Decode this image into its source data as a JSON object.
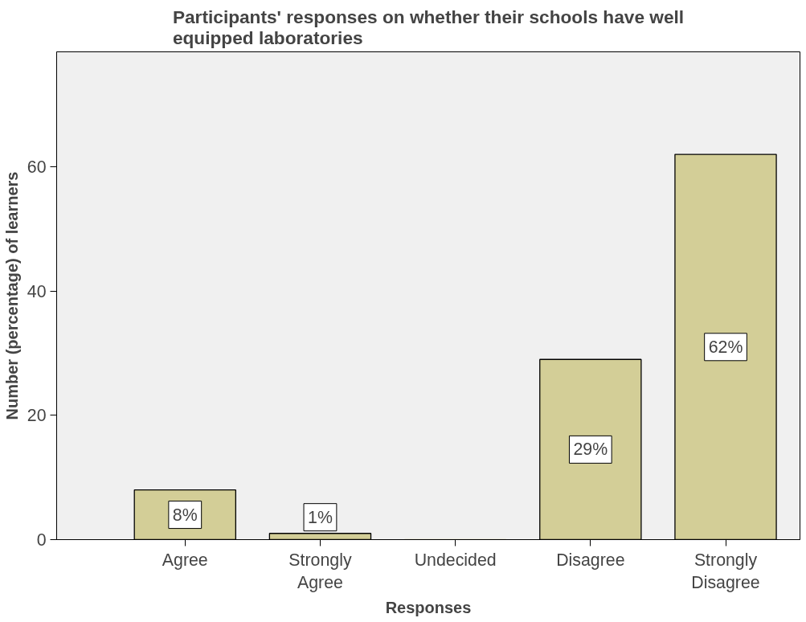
{
  "chart_data": {
    "type": "bar",
    "title": "Participants' responses on whether their schools have well equipped laboratories",
    "xlabel": "Responses",
    "ylabel": "Number (percentage) of learners",
    "categories": [
      "Agree",
      "Strongly Agree",
      "Undecided",
      "Disagree",
      "Strongly Disagree"
    ],
    "values": [
      8,
      1,
      0,
      29,
      62
    ],
    "value_labels": [
      "8%",
      "1%",
      null,
      "29%",
      "62%"
    ],
    "color": "#d3ce97",
    "ylim": [
      0,
      78.5
    ],
    "yticks": [
      0,
      20,
      40,
      60
    ],
    "grid": false
  }
}
